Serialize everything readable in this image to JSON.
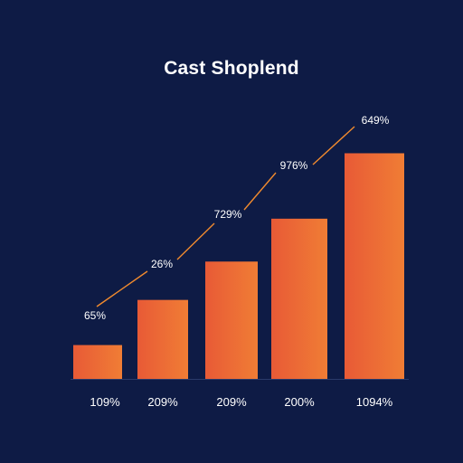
{
  "chart_data": {
    "type": "bar",
    "title": "Cast Shoplend",
    "xlabel": "",
    "ylabel": "",
    "categories": [
      "109%",
      "209%",
      "209%",
      "200%",
      "1094%"
    ],
    "values": [
      15,
      35,
      52,
      71,
      100
    ],
    "ylim": [
      0,
      105
    ],
    "data_labels": [
      "65%",
      "26%",
      "729%",
      "976%",
      "649%"
    ],
    "trend_line": true,
    "grid": false,
    "legend": "none"
  },
  "colors": {
    "background": "#0e1b45",
    "bar_start": "#e85a36",
    "bar_end": "#f07d35",
    "trend_line": "#f08a2e",
    "text": "#ffffff",
    "baseline": "#2a3a6a"
  }
}
